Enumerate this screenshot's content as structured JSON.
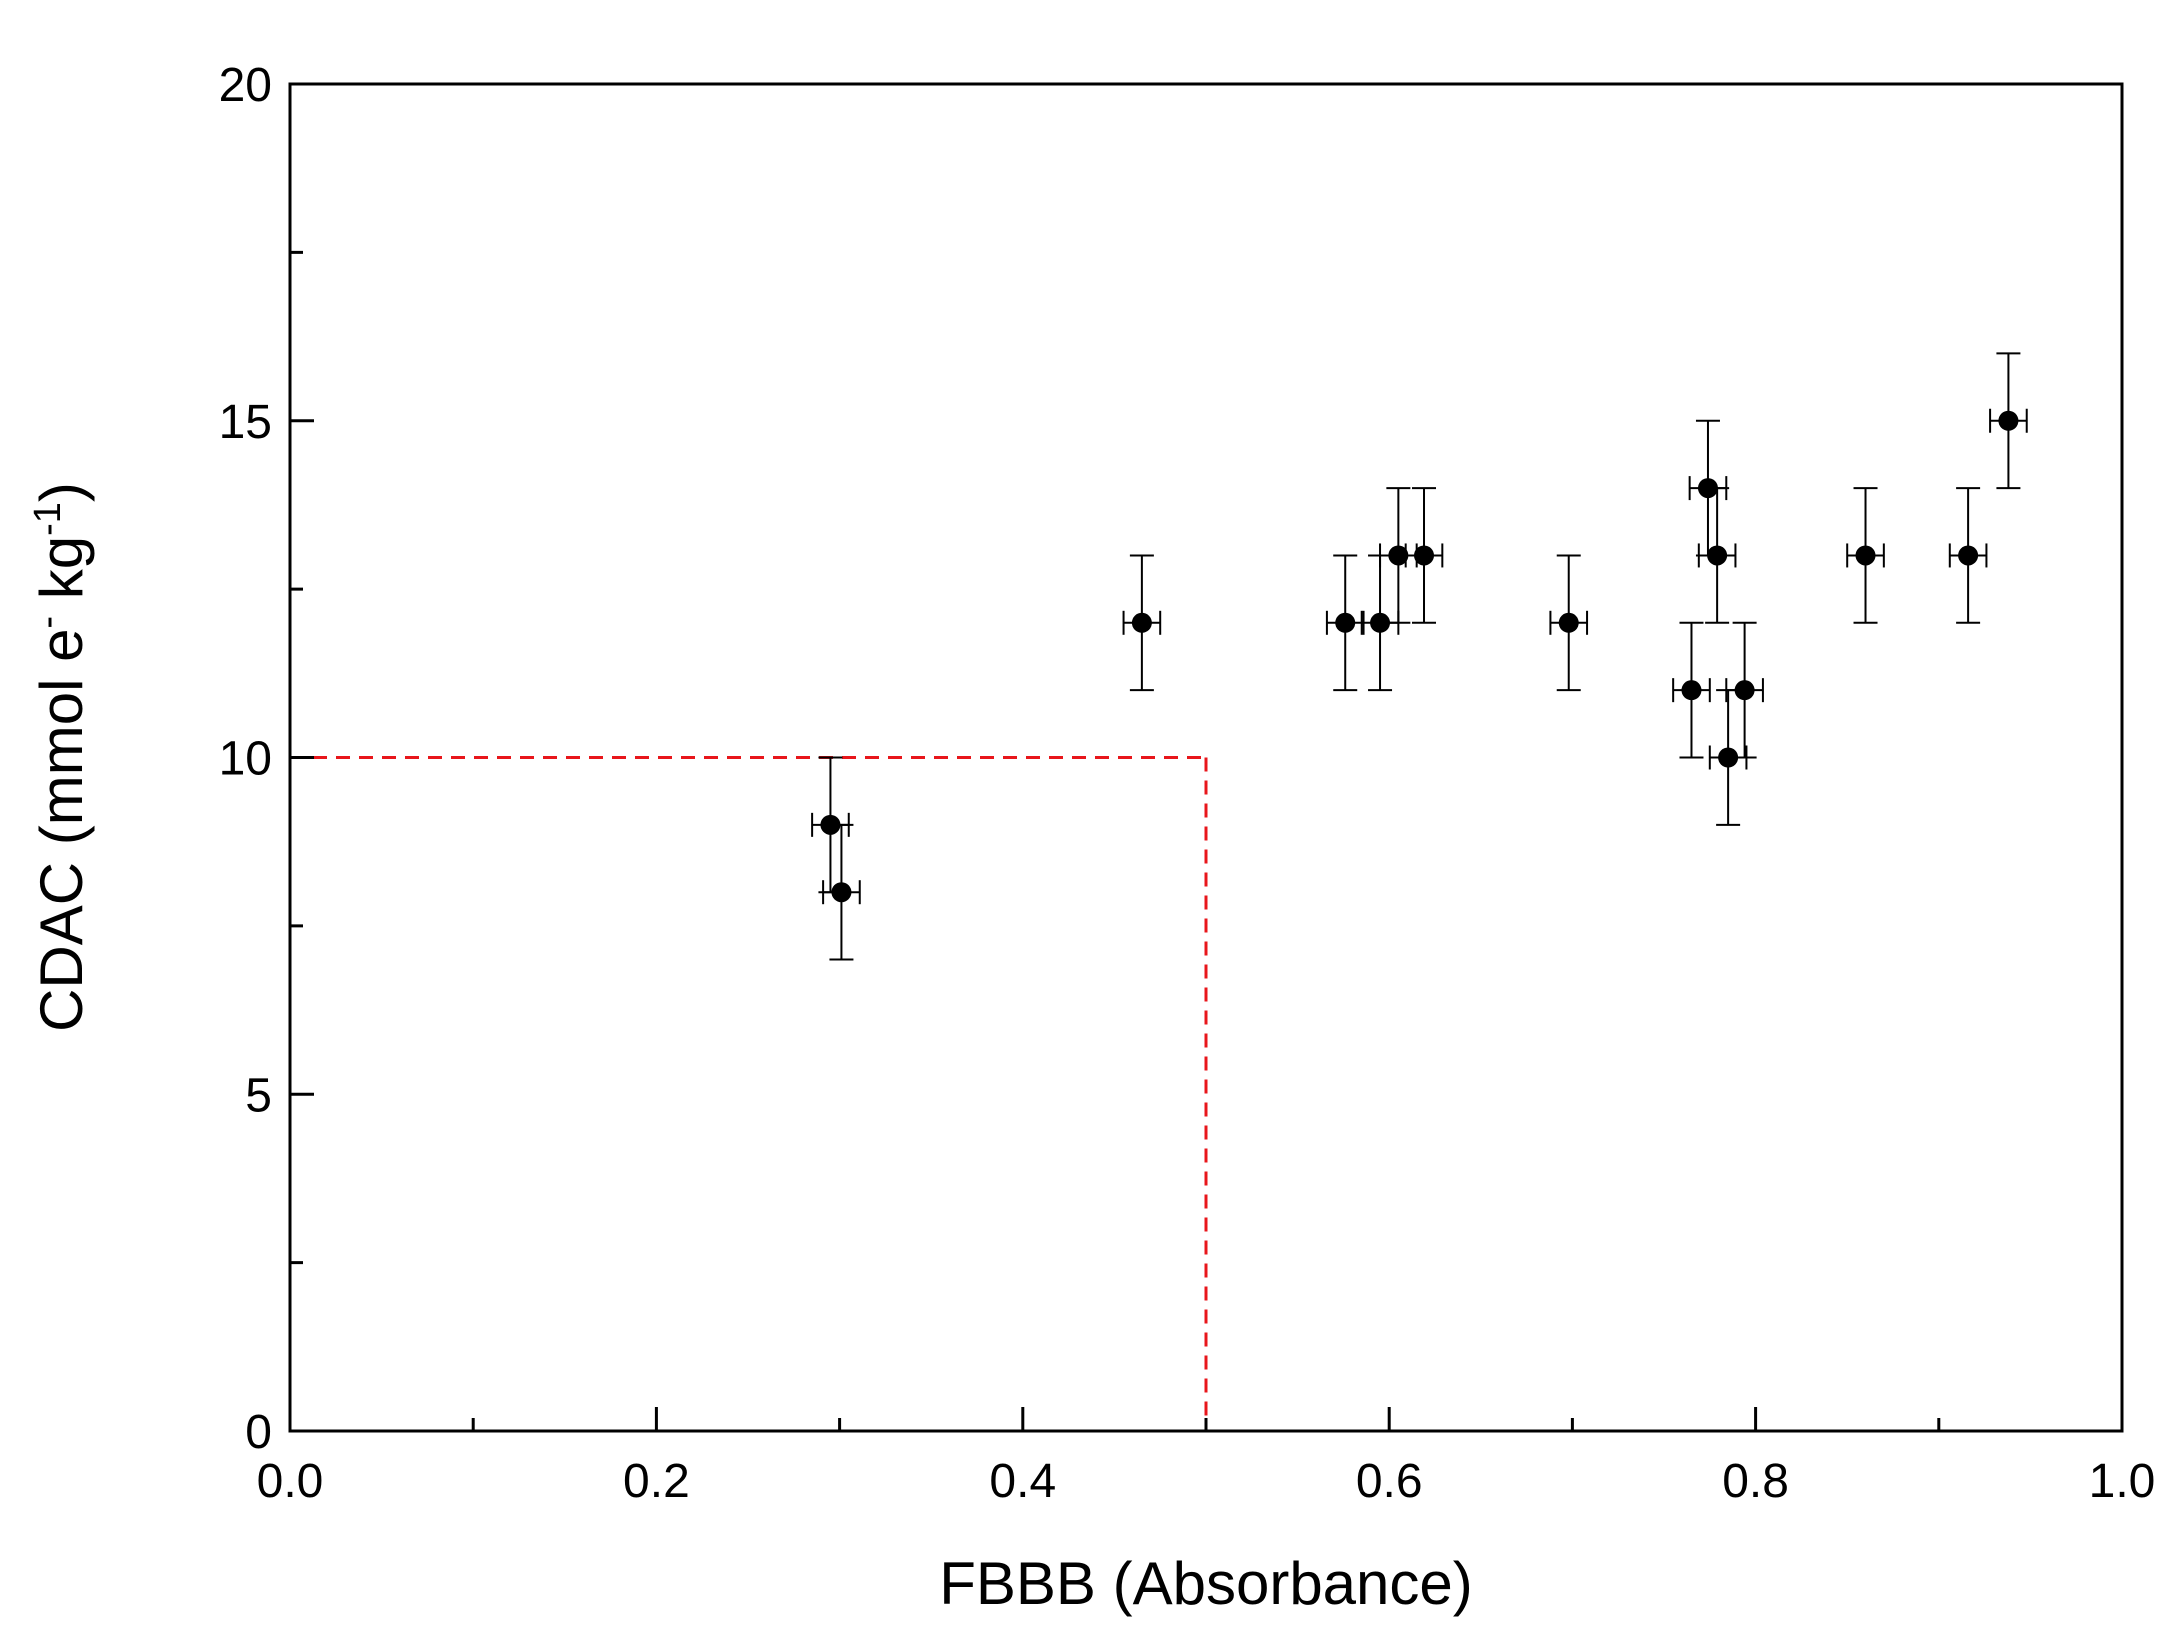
{
  "chart_data": {
    "type": "scatter",
    "title": "",
    "xlabel": "FBBB (Absorbance)",
    "ylabel": {
      "prefix": "CDAC (mmol e",
      "sup1": "-",
      "mid": " kg",
      "sup2": "-1",
      "suffix": ")"
    },
    "xlim": [
      0.0,
      1.0
    ],
    "ylim": [
      0,
      20
    ],
    "x_ticks": [
      0.0,
      0.2,
      0.4,
      0.6,
      0.8,
      1.0
    ],
    "x_tick_labels": [
      "0.0",
      "0.2",
      "0.4",
      "0.6",
      "0.8",
      "1.0"
    ],
    "x_minor_ticks": [
      0.1,
      0.3,
      0.5,
      0.7,
      0.9
    ],
    "y_ticks": [
      0,
      5,
      10,
      15,
      20
    ],
    "y_tick_labels": [
      "0",
      "5",
      "10",
      "15",
      "20"
    ],
    "y_minor_ticks": [
      2.5,
      7.5,
      12.5,
      17.5
    ],
    "grid": false,
    "marker_color": "#000000",
    "threshold_color": "#e8161b",
    "threshold": {
      "x": 0.5,
      "y": 10
    },
    "points": [
      {
        "x": 0.295,
        "y": 9,
        "xerr": 0.01,
        "yerr": 1
      },
      {
        "x": 0.301,
        "y": 8,
        "xerr": 0.01,
        "yerr": 1
      },
      {
        "x": 0.465,
        "y": 12,
        "xerr": 0.01,
        "yerr": 1
      },
      {
        "x": 0.576,
        "y": 12,
        "xerr": 0.01,
        "yerr": 1
      },
      {
        "x": 0.595,
        "y": 12,
        "xerr": 0.01,
        "yerr": 1
      },
      {
        "x": 0.605,
        "y": 13,
        "xerr": 0.01,
        "yerr": 1
      },
      {
        "x": 0.619,
        "y": 13,
        "xerr": 0.01,
        "yerr": 1
      },
      {
        "x": 0.698,
        "y": 12,
        "xerr": 0.01,
        "yerr": 1
      },
      {
        "x": 0.765,
        "y": 11,
        "xerr": 0.01,
        "yerr": 1
      },
      {
        "x": 0.774,
        "y": 14,
        "xerr": 0.01,
        "yerr": 1
      },
      {
        "x": 0.779,
        "y": 13,
        "xerr": 0.01,
        "yerr": 1
      },
      {
        "x": 0.785,
        "y": 10,
        "xerr": 0.01,
        "yerr": 1
      },
      {
        "x": 0.794,
        "y": 11,
        "xerr": 0.01,
        "yerr": 1
      },
      {
        "x": 0.86,
        "y": 13,
        "xerr": 0.01,
        "yerr": 1
      },
      {
        "x": 0.916,
        "y": 13,
        "xerr": 0.01,
        "yerr": 1
      },
      {
        "x": 0.938,
        "y": 15,
        "xerr": 0.01,
        "yerr": 1
      }
    ]
  }
}
